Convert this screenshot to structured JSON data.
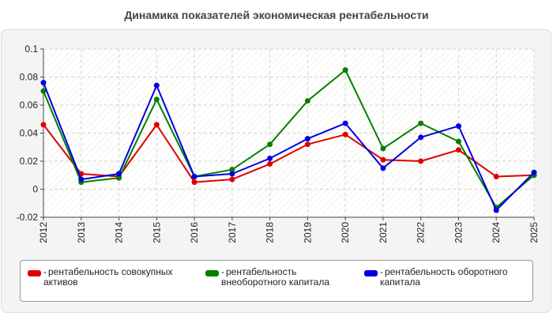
{
  "title": "Динамика показателей экономическая рентабельности",
  "chart_data": {
    "type": "line",
    "x": [
      "2012",
      "2013",
      "2014",
      "2015",
      "2016",
      "2017",
      "2018",
      "2019",
      "2020",
      "2021",
      "2022",
      "2023",
      "2024",
      "2025"
    ],
    "ylim": [
      -0.02,
      0.1
    ],
    "yticks": [
      "0.1",
      "0.08",
      "0.06",
      "0.04",
      "0.02",
      "0",
      "-0.02"
    ],
    "grid": true,
    "legend_position": "bottom",
    "series": [
      {
        "name": "рентабельность совокупных активов",
        "color": "#e00000",
        "values": [
          0.046,
          0.011,
          0.009,
          0.046,
          0.005,
          0.007,
          0.018,
          0.032,
          0.039,
          0.021,
          0.02,
          0.028,
          0.009,
          0.01
        ]
      },
      {
        "name": "рентабельность внеоборотного капитала",
        "color": "#008000",
        "values": [
          0.07,
          0.005,
          0.008,
          0.064,
          0.009,
          0.014,
          0.032,
          0.063,
          0.085,
          0.029,
          0.047,
          0.034,
          -0.013,
          0.01
        ]
      },
      {
        "name": "рентабельность оборотного капитала",
        "color": "#0000e0",
        "values": [
          0.076,
          0.007,
          0.011,
          0.074,
          0.009,
          0.011,
          0.022,
          0.036,
          0.047,
          0.015,
          0.037,
          0.045,
          -0.015,
          0.012
        ]
      }
    ]
  },
  "legend": {
    "items": [
      {
        "label": "рентабельность совокупных\nактивов",
        "color": "#e00000"
      },
      {
        "label": "рентабельность\nвнеоборотного капитала",
        "color": "#008000"
      },
      {
        "label": "рентабельность оборотного\nкапитала",
        "color": "#0000e0"
      }
    ]
  }
}
